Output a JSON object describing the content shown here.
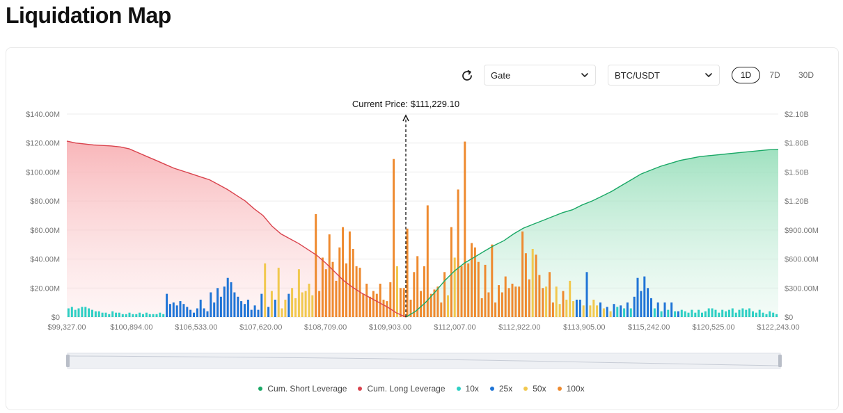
{
  "page_title": "Liquidation Map",
  "controls": {
    "exchange": "Gate",
    "pair": "BTC/USDT",
    "timeframes": [
      "1D",
      "7D",
      "30D"
    ],
    "active_timeframe": "1D"
  },
  "colors": {
    "short": "#1aa866",
    "long": "#d9434d",
    "x10": "#2ecfc4",
    "x25": "#1f74d6",
    "x50": "#f1c84e",
    "x100": "#ee8a2f"
  },
  "chart_data": {
    "type": "bar",
    "current_price_label": "Current Price: $111,229.10",
    "current_price": 111229.1,
    "x_tick_labels": [
      "$99,327.00",
      "$100,894.00",
      "$106,533.00",
      "$107,620.00",
      "$108,709.00",
      "$109,903.00",
      "$112,007.00",
      "$112,922.00",
      "$113,905.00",
      "$115,242.00",
      "$120,525.00",
      "$122,243.00"
    ],
    "y_left": {
      "ticks": [
        "$0",
        "$20.00M",
        "$40.00M",
        "$60.00M",
        "$80.00M",
        "$100.00M",
        "$120.00M",
        "$140.00M"
      ],
      "range": [
        0,
        140
      ],
      "unit": "M"
    },
    "y_right": {
      "ticks": [
        "$0",
        "$300.00M",
        "$600.00M",
        "$900.00M",
        "$1.20B",
        "$1.50B",
        "$1.80B",
        "$2.10B"
      ],
      "range": [
        0,
        2100
      ],
      "unit": "M"
    },
    "grid": true,
    "legend_position": "bottom",
    "series": [
      {
        "name": "Cum. Short Leverage",
        "kind": "line"
      },
      {
        "name": "Cum. Long Leverage",
        "kind": "line"
      },
      {
        "name": "10x",
        "kind": "bar"
      },
      {
        "name": "25x",
        "kind": "bar"
      },
      {
        "name": "50x",
        "kind": "bar"
      },
      {
        "name": "100x",
        "kind": "bar"
      }
    ],
    "cum_long": [
      1820,
      1800,
      1790,
      1780,
      1775,
      1770,
      1760,
      1740,
      1700,
      1660,
      1620,
      1580,
      1540,
      1510,
      1480,
      1450,
      1420,
      1370,
      1320,
      1260,
      1200,
      1120,
      1050,
      940,
      860,
      810,
      760,
      700,
      640,
      560,
      470,
      380,
      310,
      250,
      200,
      150,
      100,
      40,
      0
    ],
    "cum_short": [
      0,
      60,
      150,
      260,
      380,
      480,
      560,
      620,
      680,
      740,
      790,
      860,
      920,
      960,
      1000,
      1040,
      1080,
      1110,
      1160,
      1200,
      1250,
      1300,
      1360,
      1420,
      1480,
      1520,
      1560,
      1590,
      1620,
      1640,
      1660,
      1670,
      1680,
      1690,
      1700,
      1710,
      1720,
      1730,
      1735
    ],
    "bars": [
      [
        1,
        6
      ],
      [
        1,
        7
      ],
      [
        1,
        5
      ],
      [
        1,
        6
      ],
      [
        1,
        7
      ],
      [
        1,
        7
      ],
      [
        1,
        6
      ],
      [
        1,
        5
      ],
      [
        1,
        4
      ],
      [
        1,
        4
      ],
      [
        1,
        3
      ],
      [
        1,
        3
      ],
      [
        1,
        2
      ],
      [
        1,
        4
      ],
      [
        1,
        3
      ],
      [
        1,
        3
      ],
      [
        1,
        2
      ],
      [
        1,
        2
      ],
      [
        1,
        3
      ],
      [
        1,
        2
      ],
      [
        1,
        2
      ],
      [
        1,
        3
      ],
      [
        1,
        2
      ],
      [
        1,
        3
      ],
      [
        1,
        2
      ],
      [
        1,
        2
      ],
      [
        1,
        2
      ],
      [
        1,
        3
      ],
      [
        1,
        2
      ],
      [
        2,
        16
      ],
      [
        2,
        9
      ],
      [
        2,
        10
      ],
      [
        2,
        8
      ],
      [
        2,
        11
      ],
      [
        2,
        9
      ],
      [
        2,
        7
      ],
      [
        2,
        5
      ],
      [
        2,
        3
      ],
      [
        2,
        6
      ],
      [
        2,
        12
      ],
      [
        2,
        6
      ],
      [
        2,
        4
      ],
      [
        2,
        17
      ],
      [
        2,
        10
      ],
      [
        2,
        20
      ],
      [
        2,
        14
      ],
      [
        2,
        21
      ],
      [
        2,
        27
      ],
      [
        2,
        24
      ],
      [
        2,
        17
      ],
      [
        2,
        14
      ],
      [
        2,
        11
      ],
      [
        2,
        9
      ],
      [
        2,
        12
      ],
      [
        2,
        5
      ],
      [
        2,
        8
      ],
      [
        2,
        5
      ],
      [
        2,
        16
      ],
      [
        3,
        37
      ],
      [
        2,
        7
      ],
      [
        3,
        18
      ],
      [
        2,
        12
      ],
      [
        3,
        34
      ],
      [
        3,
        6
      ],
      [
        3,
        12
      ],
      [
        2,
        16
      ],
      [
        3,
        20
      ],
      [
        3,
        13
      ],
      [
        3,
        33
      ],
      [
        3,
        17
      ],
      [
        3,
        18
      ],
      [
        3,
        23
      ],
      [
        3,
        15
      ],
      [
        4,
        71
      ],
      [
        4,
        18
      ],
      [
        4,
        41
      ],
      [
        4,
        33
      ],
      [
        4,
        57
      ],
      [
        4,
        38
      ],
      [
        4,
        25
      ],
      [
        4,
        48
      ],
      [
        4,
        62
      ],
      [
        4,
        37
      ],
      [
        4,
        59
      ],
      [
        4,
        47
      ],
      [
        4,
        35
      ],
      [
        4,
        34
      ],
      [
        4,
        16
      ],
      [
        4,
        23
      ],
      [
        4,
        14
      ],
      [
        4,
        18
      ],
      [
        4,
        16
      ],
      [
        4,
        23
      ],
      [
        4,
        12
      ],
      [
        4,
        11
      ],
      [
        4,
        24
      ],
      [
        4,
        109
      ],
      [
        3,
        35
      ],
      [
        4,
        20
      ],
      [
        4,
        20
      ],
      [
        4,
        61
      ],
      [
        4,
        12
      ],
      [
        4,
        31
      ],
      [
        4,
        42
      ],
      [
        4,
        18
      ],
      [
        4,
        35
      ],
      [
        4,
        77
      ],
      [
        4,
        16
      ],
      [
        4,
        19
      ],
      [
        4,
        21
      ],
      [
        4,
        10
      ],
      [
        4,
        31
      ],
      [
        3,
        15
      ],
      [
        4,
        62
      ],
      [
        3,
        41
      ],
      [
        4,
        88
      ],
      [
        4,
        35
      ],
      [
        4,
        121
      ],
      [
        4,
        37
      ],
      [
        4,
        51
      ],
      [
        4,
        48
      ],
      [
        4,
        38
      ],
      [
        4,
        13
      ],
      [
        4,
        36
      ],
      [
        4,
        17
      ],
      [
        4,
        50
      ],
      [
        4,
        10
      ],
      [
        4,
        22
      ],
      [
        4,
        17
      ],
      [
        4,
        28
      ],
      [
        4,
        20
      ],
      [
        4,
        23
      ],
      [
        4,
        21
      ],
      [
        4,
        21
      ],
      [
        4,
        59
      ],
      [
        4,
        44
      ],
      [
        4,
        26
      ],
      [
        3,
        47
      ],
      [
        4,
        43
      ],
      [
        4,
        29
      ],
      [
        4,
        20
      ],
      [
        3,
        21
      ],
      [
        4,
        31
      ],
      [
        4,
        10
      ],
      [
        3,
        21
      ],
      [
        3,
        9
      ],
      [
        4,
        18
      ],
      [
        3,
        12
      ],
      [
        3,
        25
      ],
      [
        3,
        11
      ],
      [
        2,
        12
      ],
      [
        2,
        12
      ],
      [
        3,
        8
      ],
      [
        2,
        31
      ],
      [
        3,
        8
      ],
      [
        3,
        12
      ],
      [
        3,
        8
      ],
      [
        2,
        10
      ],
      [
        3,
        6
      ],
      [
        2,
        7
      ],
      [
        3,
        4
      ],
      [
        2,
        9
      ],
      [
        1,
        7
      ],
      [
        2,
        8
      ],
      [
        1,
        6
      ],
      [
        2,
        10
      ],
      [
        1,
        6
      ],
      [
        2,
        14
      ],
      [
        2,
        27
      ],
      [
        2,
        18
      ],
      [
        2,
        28
      ],
      [
        2,
        20
      ],
      [
        2,
        13
      ],
      [
        1,
        6
      ],
      [
        2,
        10
      ],
      [
        1,
        4
      ],
      [
        2,
        10
      ],
      [
        1,
        5
      ],
      [
        2,
        10
      ],
      [
        1,
        4
      ],
      [
        2,
        4
      ],
      [
        1,
        5
      ],
      [
        1,
        4
      ],
      [
        1,
        3
      ],
      [
        1,
        5
      ],
      [
        1,
        3
      ],
      [
        1,
        5
      ],
      [
        1,
        3
      ],
      [
        1,
        4
      ],
      [
        1,
        6
      ],
      [
        1,
        6
      ],
      [
        1,
        5
      ],
      [
        1,
        3
      ],
      [
        1,
        5
      ],
      [
        1,
        4
      ],
      [
        1,
        5
      ],
      [
        1,
        6
      ],
      [
        1,
        3
      ],
      [
        1,
        5
      ],
      [
        1,
        6
      ],
      [
        1,
        5
      ],
      [
        1,
        6
      ],
      [
        1,
        4
      ],
      [
        1,
        3
      ],
      [
        1,
        5
      ],
      [
        1,
        3
      ],
      [
        1,
        2
      ],
      [
        1,
        4
      ],
      [
        1,
        3
      ],
      [
        1,
        2
      ]
    ]
  },
  "legend": [
    "Cum. Short Leverage",
    "Cum. Long Leverage",
    "10x",
    "25x",
    "50x",
    "100x"
  ]
}
